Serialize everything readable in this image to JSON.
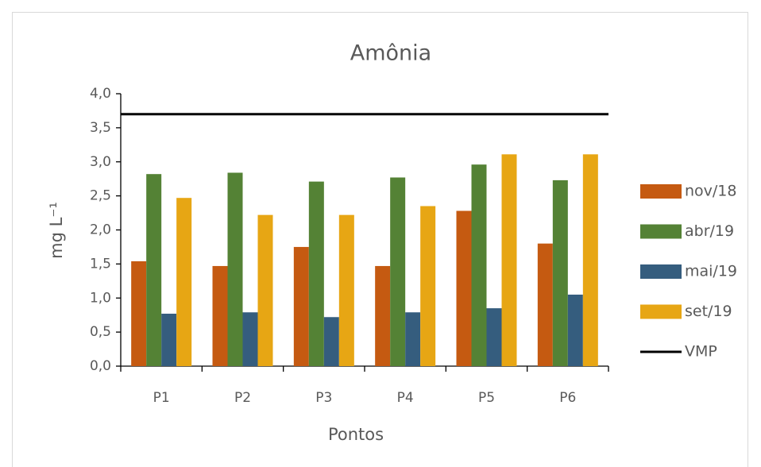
{
  "chart_data": {
    "type": "bar",
    "title": "Amônia",
    "xlabel": "Pontos",
    "ylabel": "mg L⁻¹",
    "categories": [
      "P1",
      "P2",
      "P3",
      "P4",
      "P5",
      "P6"
    ],
    "series": [
      {
        "name": "nov/18",
        "color": "#c55a11",
        "values": [
          1.54,
          1.47,
          1.75,
          1.47,
          2.28,
          1.8
        ]
      },
      {
        "name": "abr/19",
        "color": "#548235",
        "values": [
          2.82,
          2.84,
          2.71,
          2.77,
          2.96,
          2.73
        ]
      },
      {
        "name": "mai/19",
        "color": "#355d7e",
        "values": [
          0.77,
          0.79,
          0.72,
          0.79,
          0.85,
          1.05
        ]
      },
      {
        "name": "set/19",
        "color": "#e7a614",
        "values": [
          2.47,
          2.22,
          2.22,
          2.35,
          3.11,
          3.11
        ]
      }
    ],
    "reference_lines": [
      {
        "name": "VMP",
        "value": 3.7,
        "color": "#000000"
      }
    ],
    "ylim": [
      0,
      4
    ],
    "yticks": [
      {
        "value": 0,
        "label": "0,0"
      },
      {
        "value": 0.5,
        "label": "0,5"
      },
      {
        "value": 1,
        "label": "1,0"
      },
      {
        "value": 1.5,
        "label": "1,5"
      },
      {
        "value": 2,
        "label": "2,0"
      },
      {
        "value": 2.5,
        "label": "2,5"
      },
      {
        "value": 3,
        "label": "3,0"
      },
      {
        "value": 3.5,
        "label": "3,5"
      },
      {
        "value": 4,
        "label": "4,0"
      }
    ],
    "grid": false,
    "legend": "right"
  }
}
